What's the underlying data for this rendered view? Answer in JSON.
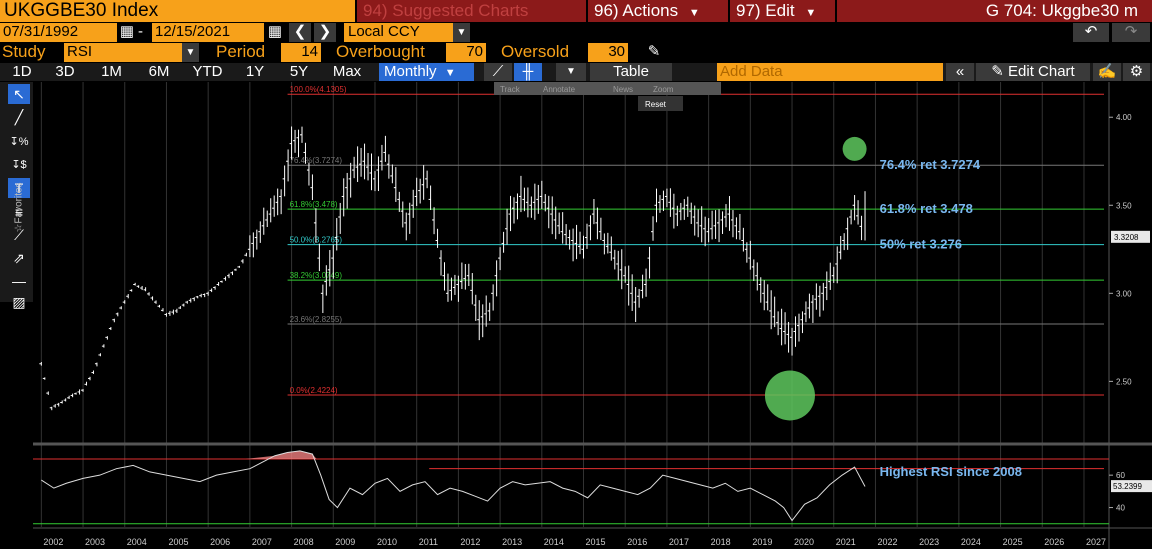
{
  "header": {
    "ticker": "UKGGBE30 Index",
    "suggested": "94) Suggested Charts",
    "actions": "96) Actions",
    "edit": "97) Edit",
    "gtitle": "G 704: Ukggbe30 m"
  },
  "dates": {
    "start": "07/31/1992",
    "dash": "-",
    "end": "12/15/2021",
    "ccy": "Local CCY"
  },
  "study": {
    "study_label": "Study",
    "study_value": "RSI",
    "period_label": "Period",
    "period_value": "14",
    "overbought_label": "Overbought",
    "overbought_value": "70",
    "oversold_label": "Oversold",
    "oversold_value": "30"
  },
  "periods": [
    "1D",
    "3D",
    "1M",
    "6M",
    "YTD",
    "1Y",
    "5Y",
    "Max"
  ],
  "freq": "Monthly",
  "table_label": "Table",
  "add_data_placeholder": "Add Data",
  "edit_chart": "Edit Chart",
  "overlay": {
    "track": "Track",
    "annotate": "Annotate",
    "news": "News",
    "zoom": "Zoom",
    "reset": "Reset"
  },
  "colors": {
    "accent": "#f7a11a",
    "price": "#ffffff",
    "fib_red": "#e03030",
    "fib_green": "#33cc33",
    "fib_cyan": "#33cccc",
    "fib_gray": "#777777",
    "annot": "#7ab8f0",
    "circle": "#5ec85e"
  },
  "chart_data": {
    "type": "line",
    "title": "",
    "x": [
      2002,
      2003,
      2004,
      2005,
      2006,
      2007,
      2008,
      2009,
      2010,
      2011,
      2012,
      2013,
      2014,
      2015,
      2016,
      2017,
      2018,
      2019,
      2020,
      2021,
      2022,
      2023,
      2024,
      2025,
      2026,
      2027
    ],
    "xlim": [
      2001.8,
      2027.6
    ],
    "ylim": [
      2.15,
      4.2
    ],
    "price_ticks": [
      "4.00",
      "3.50",
      "3.00",
      "2.50"
    ],
    "price_tick_values": [
      4.0,
      3.5,
      3.0,
      2.5
    ],
    "last_price": "3.3208",
    "fib_levels": [
      {
        "label": "100.0%(4.1305)",
        "value": 4.1305,
        "color": "#e03030"
      },
      {
        "label": "76.4%(3.7274)",
        "value": 3.7274,
        "color": "#777777"
      },
      {
        "label": "61.8%(3.478)",
        "value": 3.478,
        "color": "#33cc33"
      },
      {
        "label": "50.0%(3.2765)",
        "value": 3.2765,
        "color": "#33cccc"
      },
      {
        "label": "38.2%(3.0749)",
        "value": 3.0749,
        "color": "#33cc33"
      },
      {
        "label": "23.6%(2.8255)",
        "value": 2.8255,
        "color": "#777777"
      },
      {
        "label": "0.0%(2.4224)",
        "value": 2.4224,
        "color": "#e03030"
      }
    ],
    "annotations": [
      {
        "text": "76.4% ret 3.7274",
        "x": 2022.1,
        "y": 3.7274
      },
      {
        "text": "61.8% ret 3.478",
        "x": 2022.1,
        "y": 3.478
      },
      {
        "text": "50% ret 3.276",
        "x": 2022.1,
        "y": 3.276
      }
    ],
    "circles": [
      {
        "x": 2021.5,
        "y": 3.82,
        "r": 12
      },
      {
        "x": 2019.95,
        "y": 2.42,
        "r": 25
      }
    ],
    "price_series": {
      "x": [
        2002.0,
        2002.25,
        2002.5,
        2002.75,
        2003.0,
        2003.25,
        2003.5,
        2003.75,
        2004.0,
        2004.25,
        2004.5,
        2004.75,
        2005.0,
        2005.25,
        2005.5,
        2005.75,
        2006.0,
        2006.25,
        2006.5,
        2006.75,
        2007.0,
        2007.25,
        2007.5,
        2007.75,
        2008.0,
        2008.25,
        2008.5,
        2008.75,
        2009.0,
        2009.25,
        2009.5,
        2009.75,
        2010.0,
        2010.25,
        2010.5,
        2010.75,
        2011.0,
        2011.25,
        2011.5,
        2011.75,
        2012.0,
        2012.25,
        2012.5,
        2012.75,
        2013.0,
        2013.25,
        2013.5,
        2013.75,
        2014.0,
        2014.25,
        2014.5,
        2014.75,
        2015.0,
        2015.25,
        2015.5,
        2015.75,
        2016.0,
        2016.25,
        2016.5,
        2016.75,
        2017.0,
        2017.25,
        2017.5,
        2017.75,
        2018.0,
        2018.25,
        2018.5,
        2018.75,
        2019.0,
        2019.25,
        2019.5,
        2019.75,
        2020.0,
        2020.25,
        2020.5,
        2020.75,
        2021.0,
        2021.25,
        2021.5,
        2021.75
      ],
      "y": [
        2.6,
        2.35,
        2.38,
        2.42,
        2.45,
        2.55,
        2.7,
        2.85,
        2.95,
        3.05,
        3.02,
        2.95,
        2.88,
        2.9,
        2.95,
        2.98,
        3.0,
        3.05,
        3.1,
        3.15,
        3.25,
        3.35,
        3.45,
        3.55,
        3.85,
        3.9,
        3.6,
        3.0,
        3.2,
        3.55,
        3.7,
        3.75,
        3.65,
        3.8,
        3.6,
        3.4,
        3.55,
        3.65,
        3.3,
        3.0,
        3.05,
        3.1,
        2.85,
        2.9,
        3.2,
        3.45,
        3.55,
        3.5,
        3.55,
        3.45,
        3.35,
        3.3,
        3.25,
        3.45,
        3.3,
        3.2,
        3.1,
        2.95,
        3.05,
        3.5,
        3.55,
        3.45,
        3.5,
        3.4,
        3.35,
        3.4,
        3.45,
        3.35,
        3.2,
        3.05,
        2.9,
        2.8,
        2.75,
        2.85,
        2.95,
        3.0,
        3.1,
        3.3,
        3.5,
        3.32
      ]
    },
    "rsi": {
      "last_value": "53.2399",
      "ticks": [
        "60",
        "40"
      ],
      "tick_values": [
        60,
        40
      ],
      "ylim": [
        28,
        78
      ],
      "overbought": 70,
      "oversold": 30,
      "annotation": "Highest RSI since 2008",
      "x": [
        2002.0,
        2002.3,
        2002.6,
        2003.0,
        2003.4,
        2003.8,
        2004.2,
        2004.6,
        2005.0,
        2005.4,
        2005.8,
        2006.2,
        2006.6,
        2007.0,
        2007.3,
        2007.6,
        2007.9,
        2008.2,
        2008.5,
        2008.7,
        2008.9,
        2009.1,
        2009.4,
        2009.7,
        2010.0,
        2010.3,
        2010.6,
        2010.9,
        2011.2,
        2011.5,
        2011.8,
        2012.1,
        2012.4,
        2012.7,
        2013.0,
        2013.3,
        2013.6,
        2013.9,
        2014.2,
        2014.5,
        2014.8,
        2015.1,
        2015.4,
        2015.7,
        2016.0,
        2016.3,
        2016.6,
        2016.9,
        2017.2,
        2017.5,
        2017.8,
        2018.1,
        2018.4,
        2018.7,
        2019.0,
        2019.3,
        2019.6,
        2019.8,
        2020.0,
        2020.3,
        2020.6,
        2020.9,
        2021.2,
        2021.5,
        2021.75
      ],
      "y": [
        57,
        52,
        55,
        58,
        60,
        64,
        66,
        62,
        60,
        58,
        56,
        60,
        62,
        64,
        68,
        72,
        74,
        75,
        73,
        60,
        45,
        40,
        52,
        48,
        55,
        58,
        50,
        54,
        56,
        48,
        52,
        50,
        47,
        44,
        52,
        56,
        54,
        55,
        56,
        52,
        50,
        46,
        54,
        52,
        50,
        48,
        52,
        60,
        58,
        56,
        54,
        52,
        55,
        50,
        52,
        48,
        44,
        40,
        32,
        42,
        46,
        54,
        60,
        65,
        53
      ]
    }
  }
}
